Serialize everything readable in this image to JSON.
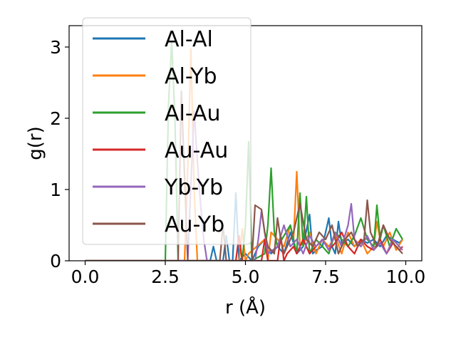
{
  "chart_data": {
    "type": "line",
    "xlabel": "r (Å)",
    "ylabel": "g(r)",
    "xlim": [
      -0.5,
      10.5
    ],
    "ylim": [
      0,
      3.3
    ],
    "xticks": [
      0.0,
      2.5,
      5.0,
      7.5,
      10.0
    ],
    "xtick_labels": [
      "0.0",
      "2.5",
      "5.0",
      "7.5",
      "10.0"
    ],
    "yticks": [
      0,
      1,
      2,
      3
    ],
    "ytick_labels": [
      "0",
      "1",
      "2",
      "3"
    ],
    "grid": false,
    "legend_position": "upper-left",
    "series": [
      {
        "name": "Al-Al",
        "color": "#1f77b4",
        "x": [
          0.0,
          2.6,
          2.7,
          2.8,
          3.9,
          4.0,
          4.1,
          4.3,
          4.4,
          4.5,
          4.6,
          4.7,
          4.8,
          5.0,
          5.2,
          5.4,
          5.6,
          5.8,
          6.0,
          6.2,
          6.4,
          6.6,
          6.8,
          7.0,
          7.1,
          7.2,
          7.4,
          7.6,
          7.7,
          7.8,
          7.9,
          8.0,
          8.2,
          8.4,
          8.6,
          8.8,
          9.0,
          9.2,
          9.4,
          9.6,
          9.8,
          9.9
        ],
        "y": [
          0.0,
          0.0,
          0.0,
          0.0,
          0.0,
          0.2,
          0.0,
          0.0,
          0.35,
          0.0,
          0.0,
          0.95,
          0.0,
          0.1,
          0.0,
          0.2,
          0.3,
          0.1,
          0.2,
          0.1,
          0.4,
          0.1,
          0.2,
          0.65,
          0.1,
          0.15,
          0.2,
          0.6,
          0.2,
          0.1,
          0.55,
          0.25,
          0.3,
          0.2,
          0.3,
          0.25,
          0.3,
          0.2,
          0.35,
          0.3,
          0.25,
          0.3
        ]
      },
      {
        "name": "Al-Yb",
        "color": "#ff7f0e",
        "x": [
          0.0,
          3.1,
          3.2,
          3.3,
          3.4,
          3.5,
          4.8,
          4.9,
          5.0,
          5.1,
          5.6,
          5.7,
          5.8,
          6.2,
          6.4,
          6.5,
          6.6,
          6.7,
          6.9,
          7.0,
          7.2,
          7.4,
          7.6,
          7.8,
          8.0,
          8.2,
          8.4,
          8.6,
          8.8,
          9.0,
          9.1,
          9.2,
          9.3,
          9.5,
          9.7,
          9.9
        ],
        "y": [
          0.0,
          0.0,
          1.3,
          2.97,
          1.0,
          0.0,
          0.0,
          0.45,
          0.0,
          0.1,
          0.3,
          0.0,
          0.4,
          0.2,
          0.5,
          0.3,
          1.25,
          0.2,
          0.3,
          0.4,
          0.1,
          0.3,
          0.2,
          0.35,
          0.1,
          0.4,
          0.2,
          0.3,
          0.1,
          0.2,
          0.55,
          0.3,
          0.2,
          0.4,
          0.15,
          0.3
        ]
      },
      {
        "name": "Al-Au",
        "color": "#2ca02c",
        "x": [
          0.0,
          2.5,
          2.6,
          2.7,
          2.8,
          2.9,
          4.9,
          5.0,
          5.1,
          5.2,
          5.6,
          5.7,
          5.8,
          5.9,
          6.0,
          6.4,
          6.5,
          6.6,
          6.7,
          6.8,
          6.9,
          7.0,
          7.2,
          7.4,
          7.6,
          7.8,
          8.0,
          8.2,
          8.4,
          8.6,
          8.8,
          9.0,
          9.1,
          9.2,
          9.3,
          9.5,
          9.7,
          9.9
        ],
        "y": [
          0.0,
          0.0,
          2.2,
          3.07,
          2.0,
          0.0,
          0.0,
          0.5,
          1.67,
          0.0,
          0.1,
          0.5,
          1.3,
          0.4,
          0.2,
          0.5,
          0.3,
          0.1,
          0.95,
          0.2,
          0.9,
          0.1,
          0.3,
          0.2,
          0.1,
          0.4,
          0.3,
          0.2,
          0.35,
          0.6,
          0.3,
          0.2,
          0.78,
          0.3,
          0.5,
          0.2,
          0.45,
          0.3
        ]
      },
      {
        "name": "Au-Au",
        "color": "#d62728",
        "x": [
          0.0,
          4.7,
          4.8,
          4.9,
          5.0,
          5.5,
          5.6,
          5.7,
          6.0,
          6.1,
          6.2,
          6.3,
          6.5,
          6.6,
          6.8,
          7.0,
          7.2,
          7.4,
          7.6,
          7.8,
          8.0,
          8.2,
          8.4,
          8.6,
          8.8,
          9.0,
          9.2,
          9.4,
          9.6,
          9.8,
          9.9
        ],
        "y": [
          0.0,
          0.0,
          0.35,
          0.0,
          0.0,
          0.0,
          0.3,
          0.0,
          0.0,
          0.35,
          0.0,
          0.1,
          0.2,
          0.1,
          0.3,
          0.1,
          0.2,
          0.3,
          0.15,
          0.25,
          0.4,
          0.2,
          0.1,
          0.3,
          0.2,
          0.15,
          0.3,
          0.1,
          0.25,
          0.15,
          0.2
        ]
      },
      {
        "name": "Yb-Yb",
        "color": "#9467bd",
        "x": [
          0.0,
          3.2,
          3.3,
          3.4,
          3.5,
          3.6,
          3.7,
          3.8,
          5.3,
          5.4,
          5.5,
          5.6,
          5.7,
          6.0,
          6.2,
          6.4,
          6.6,
          6.8,
          7.0,
          7.2,
          7.4,
          7.6,
          7.8,
          8.0,
          8.2,
          8.3,
          8.4,
          8.6,
          8.8,
          9.0,
          9.2,
          9.4,
          9.6,
          9.8,
          9.9
        ],
        "y": [
          0.0,
          0.0,
          1.1,
          2.1,
          1.4,
          0.8,
          0.3,
          0.0,
          0.0,
          0.3,
          0.7,
          0.4,
          0.1,
          0.2,
          0.5,
          0.2,
          0.3,
          0.1,
          0.35,
          0.2,
          0.3,
          0.15,
          0.4,
          0.2,
          0.5,
          0.8,
          0.3,
          0.2,
          0.35,
          0.15,
          0.25,
          0.1,
          0.3,
          0.2,
          0.15
        ]
      },
      {
        "name": "Au-Yb",
        "color": "#8c564b",
        "x": [
          0.0,
          2.9,
          3.0,
          3.1,
          3.2,
          4.2,
          4.3,
          4.4,
          5.2,
          5.3,
          5.5,
          5.6,
          5.7,
          5.9,
          6.0,
          6.1,
          6.2,
          6.3,
          6.5,
          6.7,
          6.9,
          7.1,
          7.3,
          7.5,
          7.7,
          7.9,
          8.1,
          8.3,
          8.5,
          8.7,
          8.8,
          8.9,
          9.1,
          9.3,
          9.5,
          9.7,
          9.9
        ],
        "y": [
          0.0,
          0.0,
          2.38,
          1.2,
          0.0,
          0.0,
          0.5,
          0.0,
          0.0,
          0.78,
          0.72,
          0.4,
          0.2,
          0.1,
          0.6,
          0.3,
          0.1,
          0.2,
          0.4,
          0.8,
          0.3,
          0.2,
          0.4,
          0.3,
          0.5,
          0.1,
          0.3,
          0.4,
          0.2,
          0.3,
          0.85,
          0.4,
          0.2,
          0.5,
          0.3,
          0.2,
          0.1
        ]
      }
    ]
  }
}
